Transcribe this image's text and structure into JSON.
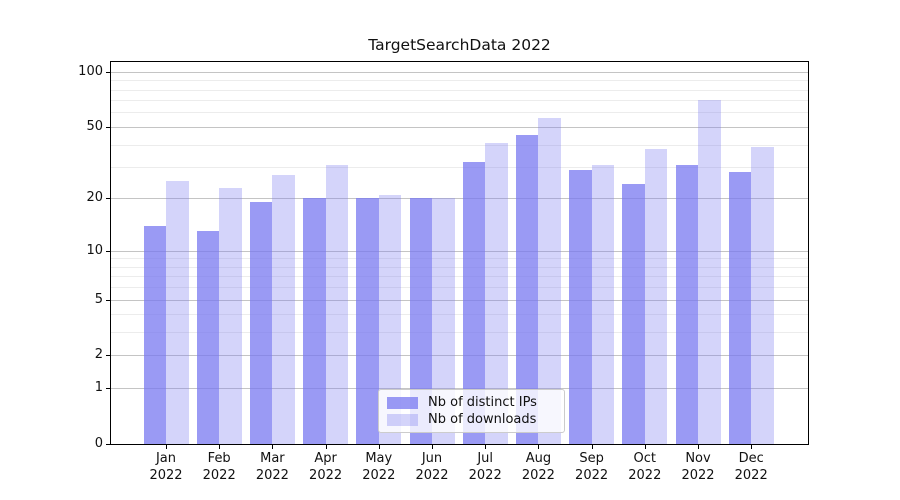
{
  "colors": {
    "background": "#ffffff",
    "bar_base": "#7878f0",
    "grid_major": "#c4c4c4",
    "grid_minor": "#ececec",
    "axis_spine": "#000000",
    "legend_border": "#cccccc"
  },
  "chart_data": {
    "type": "bar",
    "title": "TargetSearchData 2022",
    "categories": [
      "Jan 2022",
      "Feb 2022",
      "Mar 2022",
      "Apr 2022",
      "May 2022",
      "Jun 2022",
      "Jul 2022",
      "Aug 2022",
      "Sep 2022",
      "Oct 2022",
      "Nov 2022",
      "Dec 2022"
    ],
    "series": [
      {
        "name": "Nb of distinct IPs",
        "color": "rgba(120,120,240,0.75)",
        "values": [
          14,
          13,
          19,
          20,
          20,
          20,
          32,
          45,
          29,
          24,
          31,
          28
        ]
      },
      {
        "name": "Nb of downloads",
        "color": "rgba(120,120,240,0.32)",
        "values": [
          25,
          23,
          27,
          31,
          21,
          20,
          41,
          56,
          31,
          38,
          70,
          39
        ]
      }
    ],
    "xlabel": "",
    "ylabel": "",
    "yscale": "log1p",
    "ylim": [
      0,
      113
    ],
    "y_ticks_major": [
      100,
      50,
      20,
      10,
      5,
      2,
      1,
      0
    ],
    "y_ticks_minor": [
      3,
      4,
      6,
      7,
      8,
      9,
      30,
      40,
      60,
      70,
      80,
      90
    ],
    "grid": true,
    "legend_position": "lower center"
  }
}
